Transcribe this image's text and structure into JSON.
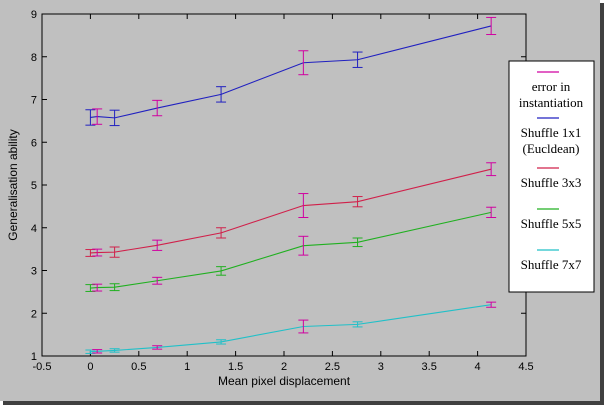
{
  "chart_data": {
    "type": "line",
    "xlabel": "Mean pixel displacement",
    "ylabel": "Generalisation ability",
    "xlim": [
      -0.5,
      4.5
    ],
    "ylim": [
      1,
      9
    ],
    "xticks": [
      "-0.5",
      "0",
      "0.5",
      "1",
      "1.5",
      "2",
      "2.5",
      "3",
      "3.5",
      "4",
      "4.5"
    ],
    "yticks": [
      "1",
      "2",
      "3",
      "4",
      "5",
      "6",
      "7",
      "8",
      "9"
    ],
    "grid": false,
    "legend_position": "right",
    "legend_errorbar_label": [
      "error in",
      "instantiation"
    ],
    "x": [
      0.0,
      0.07,
      0.25,
      0.69,
      1.35,
      2.2,
      2.76,
      4.14
    ],
    "series": [
      {
        "name_lines": [
          "Shuffle 1x1",
          "(Eucldean)"
        ],
        "color": "#2020c0",
        "y": [
          6.58,
          6.6,
          6.57,
          6.8,
          7.12,
          7.86,
          7.93,
          8.72
        ],
        "err": [
          0.18,
          0.18,
          0.18,
          0.18,
          0.18,
          0.28,
          0.18,
          0.2
        ]
      },
      {
        "name_lines": [
          "Shuffle 3x3"
        ],
        "color": "#d0204a",
        "y": [
          3.41,
          3.42,
          3.43,
          3.59,
          3.88,
          4.52,
          4.61,
          5.37
        ],
        "err": [
          0.08,
          0.08,
          0.12,
          0.12,
          0.12,
          0.28,
          0.12,
          0.15
        ]
      },
      {
        "name_lines": [
          "Shuffle 5x5"
        ],
        "color": "#20b020",
        "y": [
          2.59,
          2.6,
          2.61,
          2.76,
          2.99,
          3.58,
          3.66,
          4.36
        ],
        "err": [
          0.08,
          0.08,
          0.08,
          0.08,
          0.1,
          0.22,
          0.1,
          0.12
        ]
      },
      {
        "name_lines": [
          "Shuffle 7x7"
        ],
        "color": "#20c0c8",
        "y": [
          1.1,
          1.11,
          1.13,
          1.2,
          1.33,
          1.69,
          1.74,
          2.2
        ],
        "err": [
          0.04,
          0.04,
          0.04,
          0.04,
          0.05,
          0.15,
          0.06,
          0.06
        ]
      }
    ],
    "errorbar_color": "#d000a0"
  },
  "colors": {
    "plot_bg": "#c0c0c0",
    "frame_bg": "#bfbfbf",
    "axis": "#000000"
  }
}
